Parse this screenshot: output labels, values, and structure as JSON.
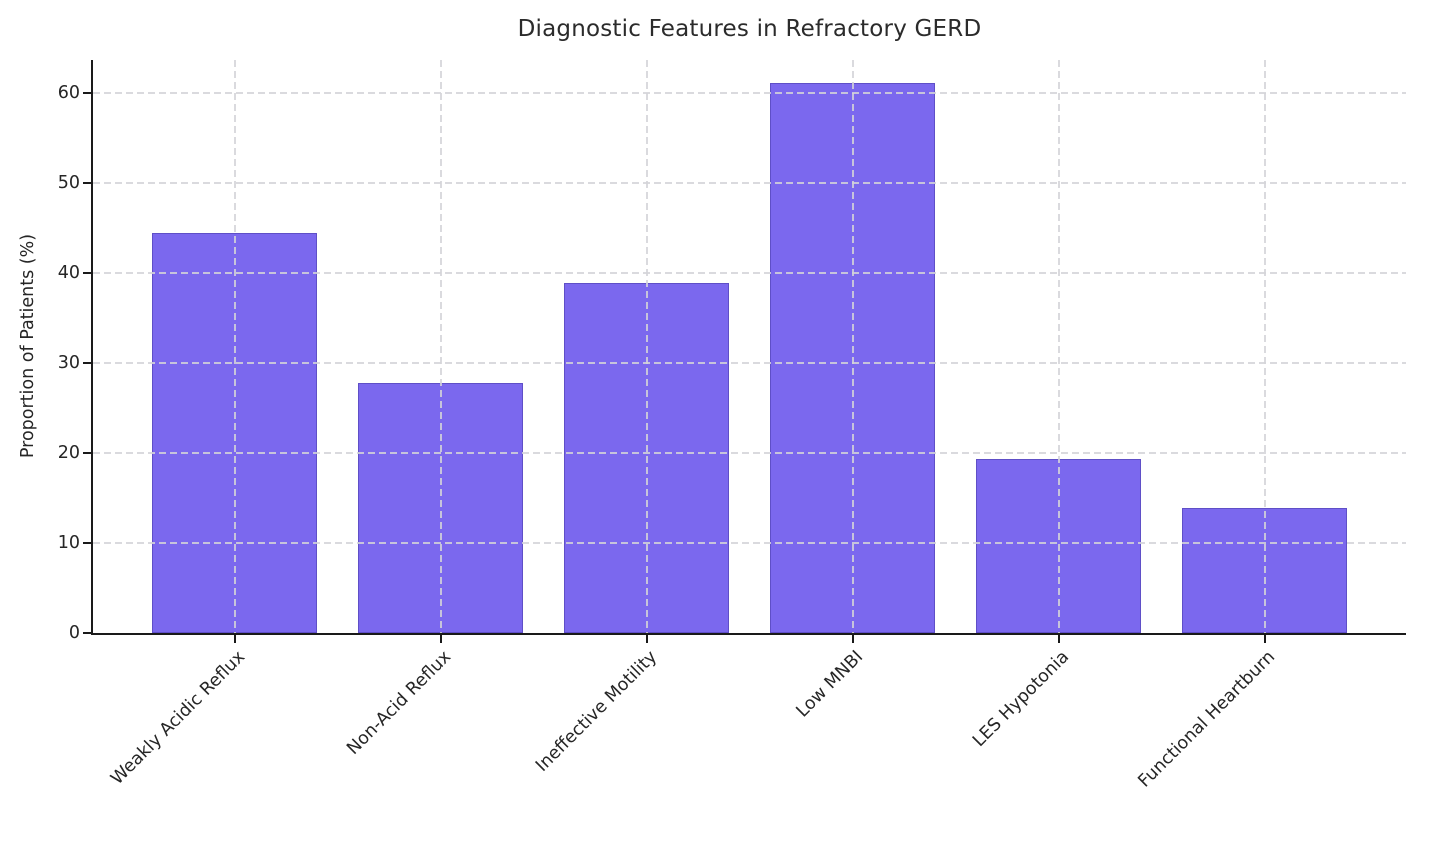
{
  "chart_data": {
    "type": "bar",
    "title": "Diagnostic Features in Refractory GERD",
    "xlabel": "",
    "ylabel": "Proportion of Patients (%)",
    "categories": [
      "Weakly Acidic Reflux",
      "Non-Acid Reflux",
      "Ineffective Motility",
      "Low MNBI",
      "LES Hypotonia",
      "Functional Heartburn"
    ],
    "values": [
      44.5,
      27.8,
      38.9,
      61.2,
      19.4,
      13.9
    ],
    "yticks": [
      0,
      10,
      20,
      30,
      40,
      50,
      60
    ],
    "ylim": [
      0,
      63.7
    ],
    "grid": "dashed, horizontal and vertical, drawn over bars",
    "legend": null,
    "colors": {
      "bar_fill": "#7B68EE",
      "bar_edge": "#5F4FC7",
      "grid": "#d4d4d8",
      "axis": "#1a1a1a",
      "text": "#262626"
    }
  }
}
